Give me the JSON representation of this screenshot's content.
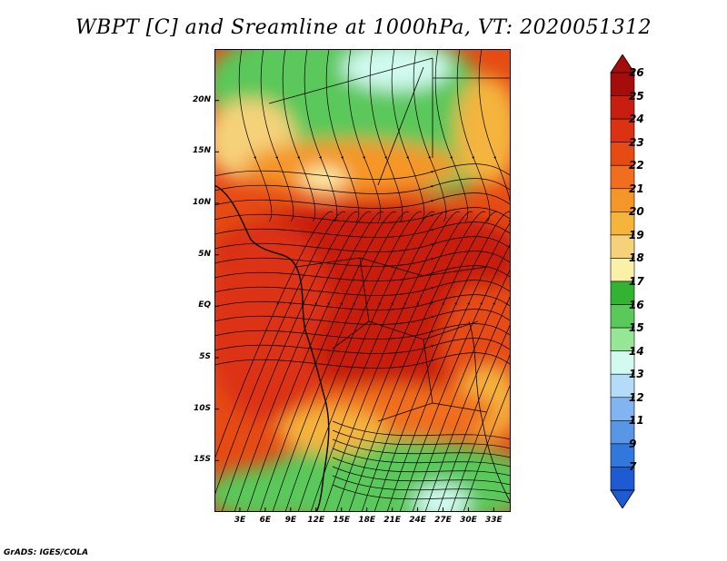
{
  "title": "WBPT [C] and Sreamline at 1000hPa, VT: 2020051312",
  "credit": "GrADS: IGES/COLA",
  "map": {
    "lat_ticks": [
      {
        "label": "20N",
        "lat": 20
      },
      {
        "label": "15N",
        "lat": 15
      },
      {
        "label": "10N",
        "lat": 10
      },
      {
        "label": "5N",
        "lat": 5
      },
      {
        "label": "EQ",
        "lat": 0
      },
      {
        "label": "5S",
        "lat": -5
      },
      {
        "label": "10S",
        "lat": -10
      },
      {
        "label": "15S",
        "lat": -15
      }
    ],
    "lon_ticks": [
      {
        "label": "3E",
        "lon": 3
      },
      {
        "label": "6E",
        "lon": 6
      },
      {
        "label": "9E",
        "lon": 9
      },
      {
        "label": "12E",
        "lon": 12
      },
      {
        "label": "15E",
        "lon": 15
      },
      {
        "label": "18E",
        "lon": 18
      },
      {
        "label": "21E",
        "lon": 21
      },
      {
        "label": "24E",
        "lon": 24
      },
      {
        "label": "27E",
        "lon": 27
      },
      {
        "label": "30E",
        "lon": 30
      },
      {
        "label": "33E",
        "lon": 33
      }
    ],
    "lat_range": [
      -20,
      25
    ],
    "lon_range": [
      0,
      35
    ]
  },
  "colorbar": {
    "labels": [
      "26",
      "25",
      "24",
      "23",
      "22",
      "21",
      "20",
      "19",
      "18",
      "17",
      "16",
      "15",
      "14",
      "13",
      "12",
      "11",
      "9",
      "7"
    ],
    "colors": [
      "#a50d0d",
      "#c81e0f",
      "#dc3214",
      "#e64b14",
      "#f06e1e",
      "#f59628",
      "#f5b43c",
      "#f5d27a",
      "#faf0aa",
      "#32b432",
      "#5ac85a",
      "#96e696",
      "#d2faf0",
      "#b4dcfa",
      "#82b4f0",
      "#5a96e6",
      "#3278dc",
      "#1e5ad2"
    ],
    "top_color": "#a50d0d",
    "bottom_color": "#1e5ad2"
  }
}
